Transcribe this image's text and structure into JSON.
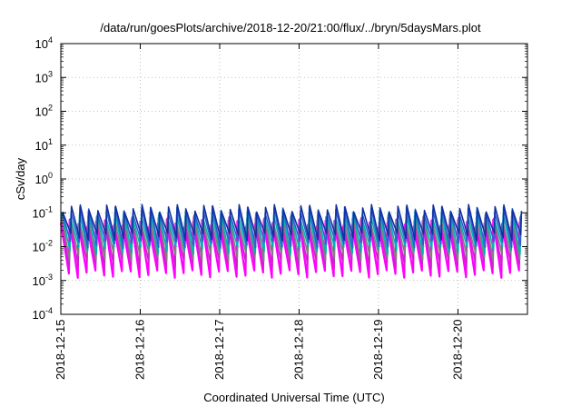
{
  "chart_data": {
    "type": "line",
    "title": "/data/run/goesPlots/archive/2018-12-20/21:00/flux/../bryn/5daysMars.plot",
    "xlabel": "Coordinated Universal Time (UTC)",
    "ylabel": "cSv/day",
    "yscale": "log",
    "ylim": [
      0.0001,
      10000
    ],
    "xlim": [
      "2018-12-15",
      "2018-12-20 21:00"
    ],
    "y_ticks": [
      {
        "base": "10",
        "exp": "4",
        "value": 10000
      },
      {
        "base": "10",
        "exp": "3",
        "value": 1000
      },
      {
        "base": "10",
        "exp": "2",
        "value": 100
      },
      {
        "base": "10",
        "exp": "1",
        "value": 10
      },
      {
        "base": "10",
        "exp": "0",
        "value": 1
      },
      {
        "base": "10",
        "exp": "-1",
        "value": 0.1
      },
      {
        "base": "10",
        "exp": "-2",
        "value": 0.01
      },
      {
        "base": "10",
        "exp": "-3",
        "value": 0.001
      },
      {
        "base": "10",
        "exp": "-4",
        "value": 0.0001
      }
    ],
    "x_ticks": [
      "2018-12-15",
      "2018-12-16",
      "2018-12-17",
      "2018-12-18",
      "2018-12-19",
      "2018-12-20"
    ],
    "grid": true,
    "legend": "none",
    "sawtooth_periods_per_day": 9,
    "series": [
      {
        "color": "#ff00ff",
        "peak": 0.05,
        "trough": 0.0016
      },
      {
        "color": "#cc22cc",
        "peak": 0.06,
        "trough": 0.003
      },
      {
        "color": "#808080",
        "peak": 0.07,
        "trough": 0.005
      },
      {
        "color": "#00b3b3",
        "peak": 0.09,
        "trough": 0.008
      },
      {
        "color": "#3060d0",
        "peak": 0.12,
        "trough": 0.012
      },
      {
        "color": "#1030a0",
        "peak": 0.14,
        "trough": 0.02
      }
    ]
  }
}
